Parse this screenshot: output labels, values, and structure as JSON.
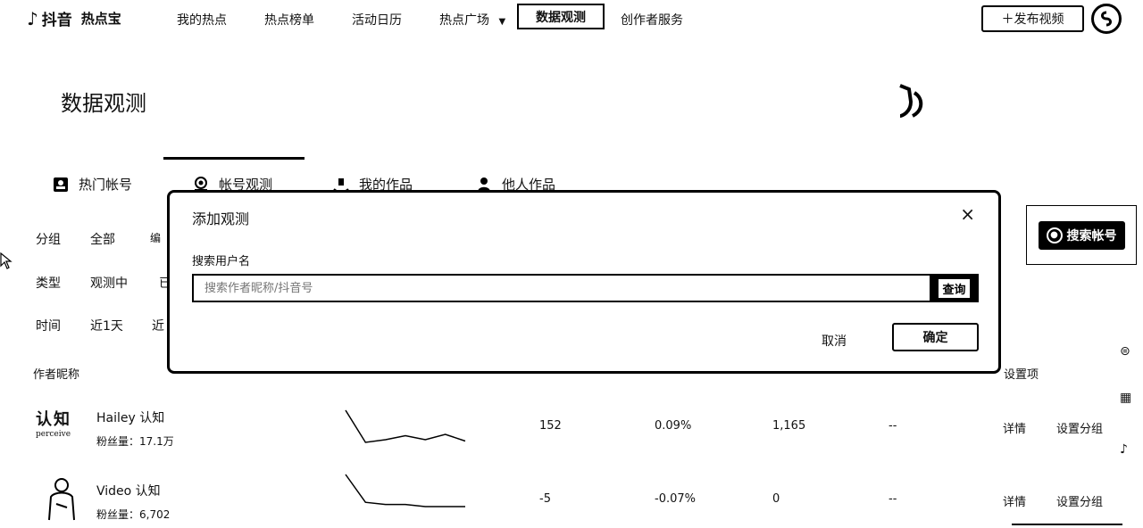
{
  "brand": {
    "logo_glyph": "♪",
    "name": "抖音",
    "product": "热点宝"
  },
  "nav": {
    "items": [
      "我的热点",
      "热点榜单",
      "活动日历",
      "热点广场"
    ],
    "dropdown_glyph": "▼",
    "active": "数据观测",
    "creator": "创作者服务",
    "publish": "＋发布视频"
  },
  "page": {
    "title": "数据观测"
  },
  "tabs": [
    "热门帐号",
    "帐号观测",
    "我的作品",
    "他人作品"
  ],
  "filters": {
    "group": {
      "label": "分组",
      "options": [
        "全部",
        "编"
      ]
    },
    "type": {
      "label": "类型",
      "options": [
        "观测中",
        "已"
      ]
    },
    "time": {
      "label": "时间",
      "options": [
        "近1天",
        "近"
      ]
    }
  },
  "search_account_button": "搜索帐号",
  "table": {
    "headers": [
      "作者昵称",
      "设置项"
    ],
    "rows": [
      {
        "name": "Hailey 认知",
        "fans": "粉丝量：17.1万",
        "logo_text": "认知",
        "logo_sub": "perceive",
        "new_fans": "152",
        "rate": "0.09%",
        "new_likes": "1,165",
        "extra": "--",
        "detail": "详情",
        "set_group": "设置分组",
        "trend": [
          30,
          6,
          8,
          11,
          8,
          12,
          7
        ]
      },
      {
        "name": "Video 认知",
        "fans": "粉丝量：6,702",
        "new_fans": "-5",
        "rate": "-0.07%",
        "new_likes": "0",
        "extra": "--",
        "detail": "详情",
        "set_group": "设置分组",
        "trend": [
          30,
          17,
          16,
          16,
          15,
          15,
          15
        ]
      }
    ]
  },
  "modal": {
    "title": "添加观测",
    "close": "×",
    "label": "搜索用户名",
    "placeholder": "搜索作者昵称/抖音号",
    "query": "查询",
    "cancel": "取消",
    "ok": "确定"
  }
}
